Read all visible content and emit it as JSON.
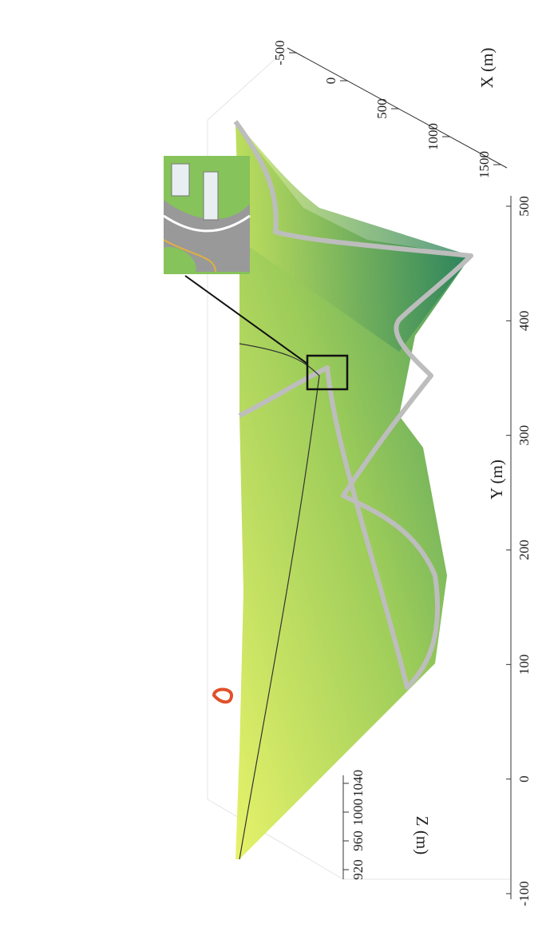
{
  "chart_data": {
    "type": "surface",
    "x_label": "X (m)",
    "y_label": "Y (m)",
    "z_label": "Z (m)",
    "xlim": [
      -500,
      1500
    ],
    "xticks": [
      -500,
      0,
      500,
      1000,
      1500
    ],
    "ylim": [
      -100,
      500
    ],
    "yticks": [
      -100,
      0,
      100,
      200,
      300,
      400,
      500
    ],
    "zlim": [
      920,
      1040
    ],
    "zticks": [
      920,
      960,
      1000,
      1040
    ]
  }
}
